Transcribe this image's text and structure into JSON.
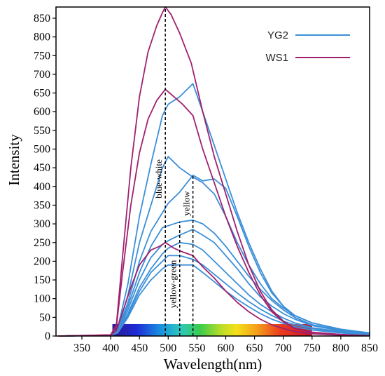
{
  "chart_data": {
    "type": "line",
    "xlabel": "Wavelength(nm)",
    "ylabel": "Intensity",
    "xlim": [
      305,
      850
    ],
    "ylim": [
      0,
      880
    ],
    "xticks": [
      350,
      400,
      450,
      500,
      550,
      600,
      650,
      700,
      750,
      800,
      850
    ],
    "yticks": [
      0,
      50,
      100,
      150,
      200,
      250,
      300,
      350,
      400,
      450,
      500,
      550,
      600,
      650,
      700,
      750,
      800,
      850
    ],
    "grid": false,
    "legend_position": "top-right",
    "legend": [
      {
        "name": "YG2",
        "color": "#3b8fd9"
      },
      {
        "name": "WS1",
        "color": "#a0206e"
      }
    ],
    "reference_lines": [
      {
        "x": 495,
        "label": "blue-white"
      },
      {
        "x": 520,
        "label": "yellow-green"
      },
      {
        "x": 543,
        "label": "yellow"
      }
    ],
    "spectrum_band": {
      "x_start": 403,
      "x_end": 750,
      "y_top": 32
    },
    "series": [
      {
        "group": "YG2",
        "color": "#3b8fd9",
        "points": [
          [
            310,
            0
          ],
          [
            400,
            2
          ],
          [
            412,
            20
          ],
          [
            430,
            140
          ],
          [
            450,
            320
          ],
          [
            470,
            460
          ],
          [
            490,
            590
          ],
          [
            500,
            620
          ],
          [
            520,
            640
          ],
          [
            543,
            675
          ],
          [
            560,
            600
          ],
          [
            580,
            510
          ],
          [
            600,
            420
          ],
          [
            620,
            330
          ],
          [
            640,
            250
          ],
          [
            660,
            180
          ],
          [
            680,
            120
          ],
          [
            700,
            80
          ],
          [
            720,
            50
          ],
          [
            750,
            30
          ],
          [
            800,
            15
          ],
          [
            850,
            5
          ]
        ]
      },
      {
        "group": "YG2",
        "color": "#3b8fd9",
        "points": [
          [
            310,
            0
          ],
          [
            400,
            2
          ],
          [
            412,
            15
          ],
          [
            430,
            110
          ],
          [
            450,
            250
          ],
          [
            470,
            350
          ],
          [
            490,
            450
          ],
          [
            500,
            480
          ],
          [
            520,
            450
          ],
          [
            543,
            425
          ],
          [
            560,
            410
          ],
          [
            580,
            380
          ],
          [
            600,
            320
          ],
          [
            620,
            250
          ],
          [
            640,
            190
          ],
          [
            660,
            140
          ],
          [
            680,
            100
          ],
          [
            700,
            75
          ],
          [
            720,
            55
          ],
          [
            750,
            35
          ],
          [
            800,
            18
          ],
          [
            850,
            8
          ]
        ]
      },
      {
        "group": "YG2",
        "color": "#3b8fd9",
        "points": [
          [
            310,
            0
          ],
          [
            400,
            2
          ],
          [
            412,
            13
          ],
          [
            430,
            90
          ],
          [
            450,
            200
          ],
          [
            470,
            280
          ],
          [
            490,
            330
          ],
          [
            500,
            355
          ],
          [
            520,
            385
          ],
          [
            543,
            430
          ],
          [
            560,
            415
          ],
          [
            580,
            420
          ],
          [
            600,
            395
          ],
          [
            620,
            320
          ],
          [
            640,
            240
          ],
          [
            660,
            170
          ],
          [
            680,
            115
          ],
          [
            700,
            80
          ],
          [
            720,
            55
          ],
          [
            750,
            35
          ],
          [
            800,
            18
          ],
          [
            850,
            8
          ]
        ]
      },
      {
        "group": "YG2",
        "color": "#3b8fd9",
        "points": [
          [
            310,
            0
          ],
          [
            400,
            2
          ],
          [
            412,
            12
          ],
          [
            430,
            80
          ],
          [
            450,
            170
          ],
          [
            470,
            240
          ],
          [
            490,
            290
          ],
          [
            500,
            295
          ],
          [
            520,
            305
          ],
          [
            543,
            310
          ],
          [
            560,
            300
          ],
          [
            580,
            275
          ],
          [
            600,
            240
          ],
          [
            620,
            200
          ],
          [
            640,
            160
          ],
          [
            660,
            125
          ],
          [
            680,
            95
          ],
          [
            700,
            70
          ],
          [
            720,
            50
          ],
          [
            750,
            30
          ],
          [
            800,
            16
          ],
          [
            850,
            7
          ]
        ]
      },
      {
        "group": "YG2",
        "color": "#3b8fd9",
        "points": [
          [
            310,
            0
          ],
          [
            400,
            2
          ],
          [
            412,
            11
          ],
          [
            430,
            70
          ],
          [
            450,
            150
          ],
          [
            470,
            210
          ],
          [
            490,
            245
          ],
          [
            500,
            255
          ],
          [
            520,
            270
          ],
          [
            543,
            285
          ],
          [
            560,
            270
          ],
          [
            580,
            250
          ],
          [
            600,
            215
          ],
          [
            620,
            180
          ],
          [
            640,
            140
          ],
          [
            660,
            105
          ],
          [
            680,
            80
          ],
          [
            700,
            60
          ],
          [
            720,
            45
          ],
          [
            750,
            28
          ],
          [
            800,
            14
          ],
          [
            850,
            6
          ]
        ]
      },
      {
        "group": "YG2",
        "color": "#3b8fd9",
        "points": [
          [
            310,
            0
          ],
          [
            400,
            2
          ],
          [
            412,
            10
          ],
          [
            430,
            60
          ],
          [
            450,
            130
          ],
          [
            470,
            180
          ],
          [
            490,
            220
          ],
          [
            500,
            235
          ],
          [
            520,
            250
          ],
          [
            543,
            245
          ],
          [
            560,
            230
          ],
          [
            580,
            200
          ],
          [
            600,
            170
          ],
          [
            620,
            140
          ],
          [
            640,
            110
          ],
          [
            660,
            85
          ],
          [
            680,
            65
          ],
          [
            700,
            48
          ],
          [
            720,
            35
          ],
          [
            750,
            22
          ],
          [
            800,
            12
          ],
          [
            850,
            5
          ]
        ]
      },
      {
        "group": "YG2",
        "color": "#3b8fd9",
        "points": [
          [
            310,
            0
          ],
          [
            400,
            2
          ],
          [
            412,
            9
          ],
          [
            430,
            55
          ],
          [
            450,
            120
          ],
          [
            470,
            170
          ],
          [
            490,
            200
          ],
          [
            500,
            215
          ],
          [
            520,
            215
          ],
          [
            543,
            205
          ],
          [
            560,
            190
          ],
          [
            580,
            165
          ],
          [
            600,
            140
          ],
          [
            620,
            115
          ],
          [
            640,
            92
          ],
          [
            660,
            72
          ],
          [
            680,
            55
          ],
          [
            700,
            40
          ],
          [
            720,
            30
          ],
          [
            750,
            20
          ],
          [
            800,
            10
          ],
          [
            850,
            4
          ]
        ]
      },
      {
        "group": "YG2",
        "color": "#3b8fd9",
        "points": [
          [
            310,
            0
          ],
          [
            400,
            2
          ],
          [
            412,
            8
          ],
          [
            430,
            50
          ],
          [
            450,
            110
          ],
          [
            470,
            150
          ],
          [
            490,
            180
          ],
          [
            500,
            190
          ],
          [
            520,
            190
          ],
          [
            543,
            190
          ],
          [
            560,
            170
          ],
          [
            580,
            145
          ],
          [
            600,
            120
          ],
          [
            620,
            98
          ],
          [
            640,
            78
          ],
          [
            660,
            60
          ],
          [
            680,
            45
          ],
          [
            700,
            34
          ],
          [
            720,
            25
          ],
          [
            750,
            16
          ],
          [
            800,
            8
          ],
          [
            850,
            3
          ]
        ]
      },
      {
        "group": "WS1",
        "color": "#a0206e",
        "points": [
          [
            310,
            0
          ],
          [
            400,
            3
          ],
          [
            410,
            30
          ],
          [
            420,
            200
          ],
          [
            435,
            450
          ],
          [
            450,
            640
          ],
          [
            465,
            760
          ],
          [
            480,
            830
          ],
          [
            490,
            865
          ],
          [
            495,
            880
          ],
          [
            505,
            860
          ],
          [
            520,
            810
          ],
          [
            540,
            730
          ],
          [
            560,
            600
          ],
          [
            580,
            480
          ],
          [
            600,
            380
          ],
          [
            620,
            280
          ],
          [
            640,
            190
          ],
          [
            660,
            120
          ],
          [
            680,
            70
          ],
          [
            700,
            40
          ],
          [
            720,
            20
          ],
          [
            750,
            10
          ],
          [
            800,
            4
          ],
          [
            850,
            1
          ]
        ]
      },
      {
        "group": "WS1",
        "color": "#a0206e",
        "points": [
          [
            310,
            0
          ],
          [
            400,
            3
          ],
          [
            410,
            25
          ],
          [
            420,
            160
          ],
          [
            435,
            350
          ],
          [
            450,
            490
          ],
          [
            465,
            580
          ],
          [
            480,
            630
          ],
          [
            495,
            660
          ],
          [
            510,
            640
          ],
          [
            525,
            620
          ],
          [
            543,
            590
          ],
          [
            560,
            500
          ],
          [
            580,
            410
          ],
          [
            600,
            320
          ],
          [
            620,
            240
          ],
          [
            640,
            170
          ],
          [
            660,
            110
          ],
          [
            680,
            65
          ],
          [
            700,
            38
          ],
          [
            720,
            20
          ],
          [
            750,
            10
          ],
          [
            800,
            4
          ],
          [
            850,
            1
          ]
        ]
      },
      {
        "group": "WS1",
        "color": "#a0206e",
        "points": [
          [
            310,
            0
          ],
          [
            400,
            2
          ],
          [
            410,
            15
          ],
          [
            420,
            60
          ],
          [
            435,
            130
          ],
          [
            450,
            190
          ],
          [
            470,
            230
          ],
          [
            485,
            240
          ],
          [
            495,
            250
          ],
          [
            510,
            235
          ],
          [
            525,
            225
          ],
          [
            543,
            215
          ],
          [
            560,
            185
          ],
          [
            580,
            155
          ],
          [
            600,
            120
          ],
          [
            620,
            90
          ],
          [
            640,
            65
          ],
          [
            660,
            45
          ],
          [
            680,
            30
          ],
          [
            700,
            20
          ],
          [
            720,
            12
          ],
          [
            750,
            6
          ],
          [
            800,
            2
          ],
          [
            850,
            1
          ]
        ]
      }
    ]
  }
}
